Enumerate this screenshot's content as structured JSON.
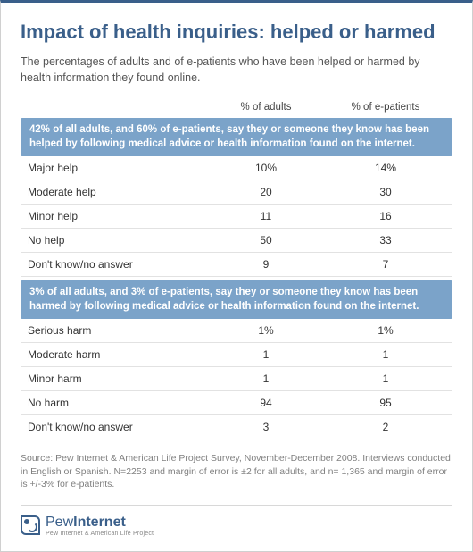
{
  "title": "Impact of health inquiries: helped or harmed",
  "subtitle": "The percentages of adults and of e-patients who have been helped or harmed by health information they found online.",
  "columns": {
    "col1": "% of adults",
    "col2": "% of e-patients"
  },
  "sections": [
    {
      "banner": "42% of all adults, and 60% of e-patients, say they or someone they know has been helped by following medical advice or health information found on the internet.",
      "rows": [
        {
          "label": "Major help",
          "v1": "10%",
          "v2": "14%"
        },
        {
          "label": "Moderate help",
          "v1": "20",
          "v2": "30"
        },
        {
          "label": "Minor help",
          "v1": "11",
          "v2": "16"
        },
        {
          "label": "No help",
          "v1": "50",
          "v2": "33"
        },
        {
          "label": "Don't know/no answer",
          "v1": "9",
          "v2": "7"
        }
      ]
    },
    {
      "banner": "3% of all adults, and 3% of e-patients, say they or someone they know has been harmed by following medical advice or health information found on the internet.",
      "rows": [
        {
          "label": "Serious harm",
          "v1": "1%",
          "v2": "1%"
        },
        {
          "label": "Moderate harm",
          "v1": "1",
          "v2": "1"
        },
        {
          "label": "Minor harm",
          "v1": "1",
          "v2": "1"
        },
        {
          "label": "No harm",
          "v1": "94",
          "v2": "95"
        },
        {
          "label": "Don't know/no answer",
          "v1": "3",
          "v2": "2"
        }
      ]
    }
  ],
  "source": "Source: Pew Internet & American Life Project Survey, November-December 2008. Interviews conducted in English or Spanish. N=2253 and margin of error is ±2 for all adults, and n= 1,365 and margin of error is +/-3% for e-patients.",
  "logo": {
    "brand_light": "Pew",
    "brand_bold": "Internet",
    "tagline": "Pew Internet & American Life Project"
  },
  "style": {
    "accent": "#3a5f8a",
    "banner_bg": "#7ba3c9",
    "text": "#333333",
    "muted": "#808080",
    "border": "#d0d0d0",
    "row_border": "#e2e2e2"
  }
}
